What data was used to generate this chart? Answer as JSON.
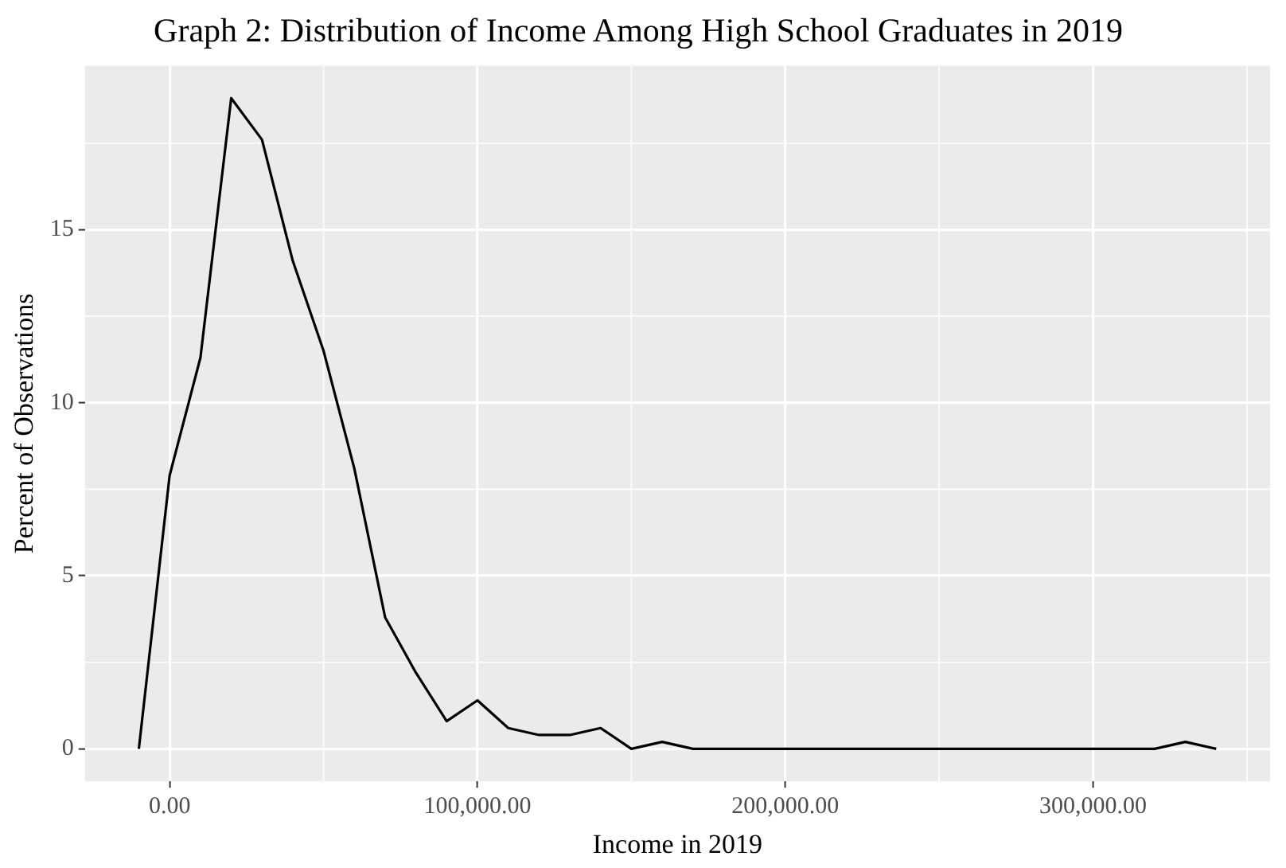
{
  "chart_data": {
    "type": "line",
    "title": "Graph 2: Distribution of Income Among High School Graduates in 2019",
    "xlabel": "Income in 2019",
    "ylabel": "Percent of Observations",
    "x": [
      -10000,
      0,
      10000,
      20000,
      30000,
      40000,
      50000,
      60000,
      70000,
      80000,
      90000,
      100000,
      110000,
      120000,
      130000,
      140000,
      150000,
      160000,
      170000,
      180000,
      190000,
      200000,
      210000,
      220000,
      230000,
      240000,
      250000,
      260000,
      270000,
      280000,
      290000,
      300000,
      310000,
      320000,
      330000,
      340000
    ],
    "series": [
      {
        "color": "#000000",
        "values": [
          0,
          7.9,
          11.3,
          18.8,
          17.6,
          14.1,
          11.5,
          8.1,
          3.8,
          2.2,
          0.8,
          1.4,
          0.6,
          0.4,
          0.4,
          0.6,
          0,
          0.2,
          0,
          0,
          0,
          0,
          0,
          0,
          0,
          0,
          0,
          0,
          0,
          0,
          0,
          0,
          0,
          0,
          0.2,
          0
        ]
      }
    ],
    "xlim": [
      -27500,
      357500
    ],
    "ylim": [
      -0.94,
      19.74
    ],
    "xticks": [
      {
        "value": 0,
        "label": "0.00"
      },
      {
        "value": 100000,
        "label": "100,000.00"
      },
      {
        "value": 200000,
        "label": "200,000.00"
      },
      {
        "value": 300000,
        "label": "300,000.00"
      }
    ],
    "yticks": [
      0,
      5,
      10,
      15
    ],
    "grid": true,
    "legend": false,
    "marker": "none",
    "line_style": "solid"
  }
}
